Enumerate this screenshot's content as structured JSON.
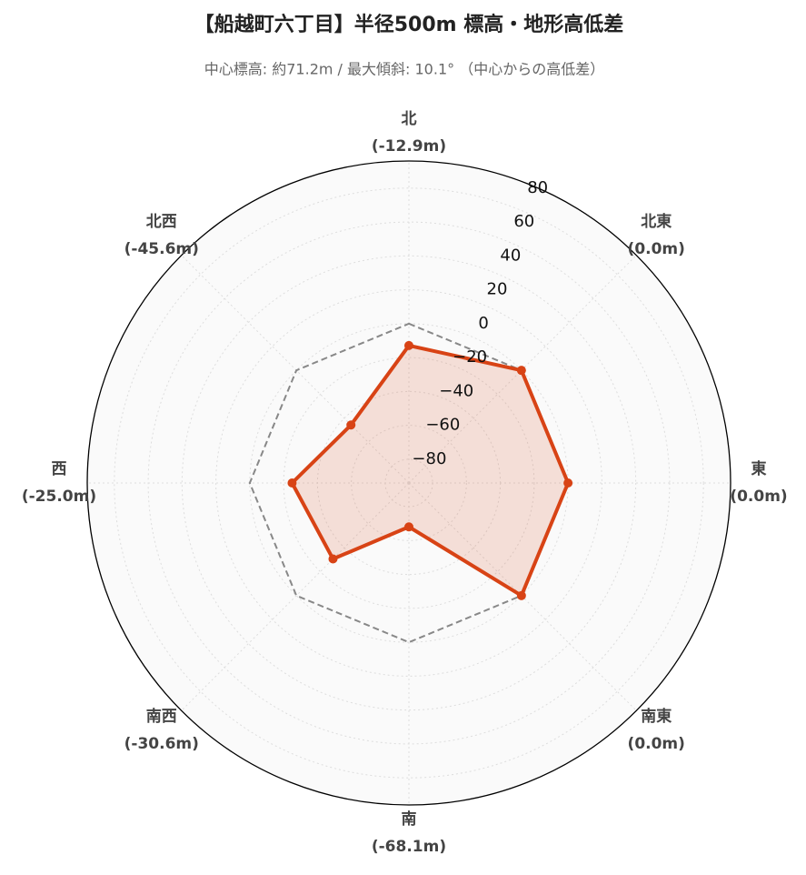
{
  "chart_data": {
    "type": "radar",
    "title": "【船越町六丁目】半径500m 標高・地形高低差",
    "subtitle": "中心標高: 約71.2m / 最大傾斜: 10.1° （中心からの高低差）",
    "categories": [
      "北",
      "北東",
      "東",
      "南東",
      "南",
      "南西",
      "西",
      "北西"
    ],
    "values": [
      -12.9,
      0.0,
      0.0,
      0.0,
      -68.1,
      -30.6,
      -25.0,
      -45.6
    ],
    "value_labels": [
      "(-12.9m)",
      "(0.0m)",
      "(0.0m)",
      "(0.0m)",
      "(-68.1m)",
      "(-30.6m)",
      "(-25.0m)",
      "(-45.6m)"
    ],
    "color": "#d84315",
    "reference_value": 0,
    "ylim": [
      -94,
      96
    ],
    "yticks": [
      {
        "value": -80,
        "label": "−80"
      },
      {
        "value": -60,
        "label": "−60"
      },
      {
        "value": -40,
        "label": "−40"
      },
      {
        "value": -20,
        "label": "−20"
      },
      0,
      20,
      40,
      60,
      80
    ],
    "grid": true
  }
}
